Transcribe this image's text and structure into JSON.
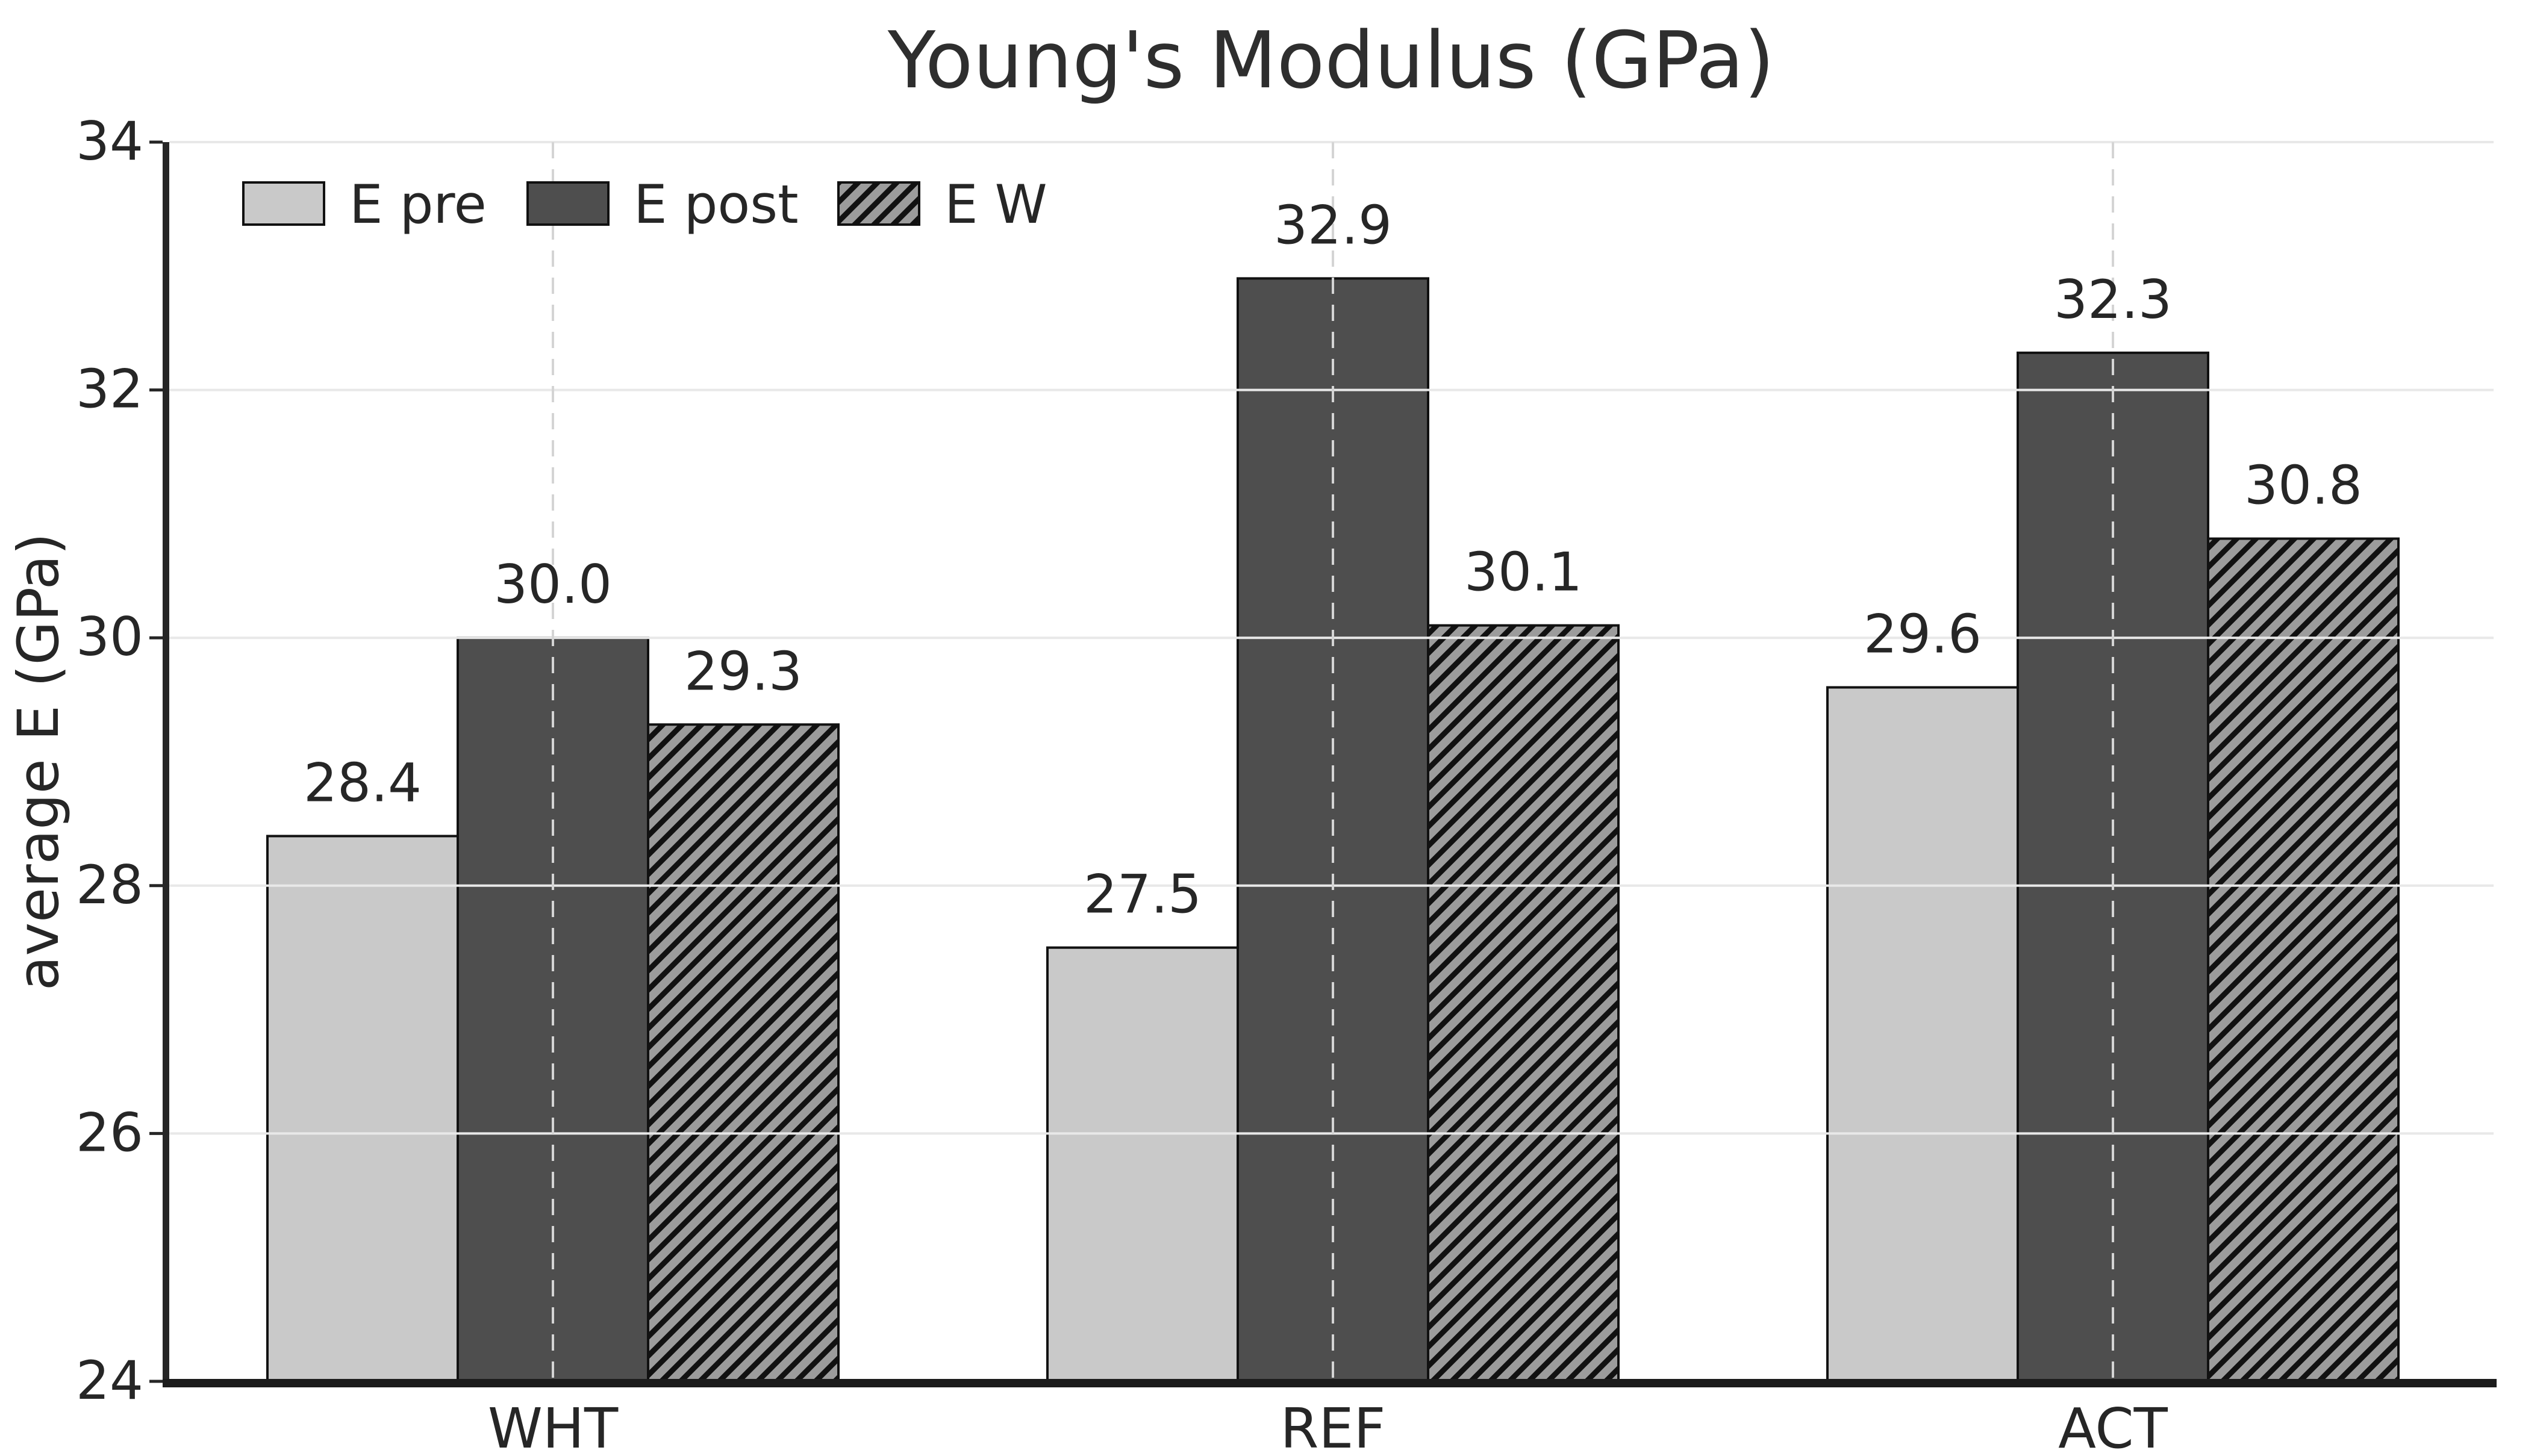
{
  "chart_data": {
    "type": "bar",
    "title": "Young's Modulus (GPa)",
    "ylabel": "average E (GPa)",
    "xlabel": "",
    "categories": [
      "WHT",
      "REF",
      "ACT"
    ],
    "series": [
      {
        "name": "E pre",
        "values": [
          28.4,
          27.5,
          29.6
        ],
        "labels": [
          "28.4",
          "27.5",
          "29.6"
        ],
        "fill": "#c9c9c9",
        "hatch": false
      },
      {
        "name": "E post",
        "values": [
          30.0,
          32.9,
          32.3
        ],
        "labels": [
          "30.0",
          "32.9",
          "32.3"
        ],
        "fill": "#4e4e4e",
        "hatch": false
      },
      {
        "name": "E W",
        "values": [
          29.3,
          30.1,
          30.8
        ],
        "labels": [
          "29.3",
          "30.1",
          "30.8"
        ],
        "fill": "#9c9c9c",
        "hatch": true
      }
    ],
    "ylim": [
      24,
      34
    ],
    "yticks": [
      "24",
      "26",
      "28",
      "30",
      "32",
      "34"
    ],
    "grid": {
      "horizontal": "solid",
      "vertical": "dashed",
      "h_color": "#e8e8e8",
      "v_color": "#d4d4d4"
    },
    "legend": {
      "position": "upper left",
      "entries": [
        "E pre",
        "E post",
        "E W"
      ]
    },
    "colors": {
      "edge": "#111111",
      "text": "#262626",
      "spine": "#262626",
      "bottom_spine": "#1c1c1c",
      "hatch": "#111111",
      "background": "#ffffff"
    }
  }
}
